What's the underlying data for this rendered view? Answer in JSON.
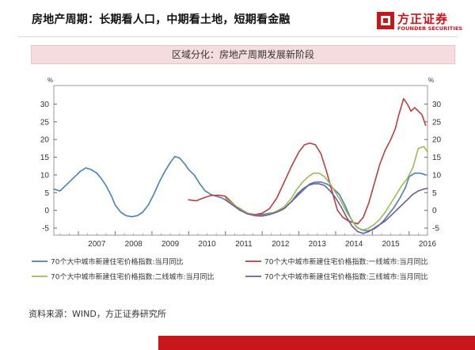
{
  "header": {
    "title": "房地产周期：长期看人口，中期看土地，短期看金融",
    "logo_cn": "方正证券",
    "logo_en": "FOUNDER SECURITIES",
    "brand_color": "#c8161d"
  },
  "banner": {
    "text": "区域分化：房地产周期发展新阶段",
    "background": "#f5dcdf"
  },
  "source": {
    "text": "资料来源：WIND，方正证券研究所"
  },
  "chart_data": {
    "type": "line",
    "title": "",
    "left_unit": "%",
    "right_unit": "%",
    "y_range": [
      -7,
      33
    ],
    "left_ticks": [
      -5,
      0,
      5,
      10,
      15,
      20,
      25,
      30
    ],
    "right_ticks": [
      -5,
      0,
      5,
      10,
      15,
      20,
      25,
      30
    ],
    "x_range": [
      2006.33,
      2016.5
    ],
    "x_labels": [
      "2007",
      "2008",
      "2009",
      "2010",
      "2011",
      "2012",
      "2013",
      "2014",
      "2015",
      "2016"
    ],
    "series": [
      {
        "name": "70个大中城市新建住宅价格指数:当月同比",
        "color": "#4a7fb5",
        "x": [
          2006.33,
          2006.5,
          2006.7,
          2006.9,
          2007.05,
          2007.2,
          2007.35,
          2007.5,
          2007.62,
          2007.75,
          2007.9,
          2008.0,
          2008.15,
          2008.3,
          2008.45,
          2008.6,
          2008.75,
          2008.9,
          2009.05,
          2009.2,
          2009.35,
          2009.5,
          2009.62,
          2009.75,
          2009.9,
          2010.0,
          2010.15,
          2010.3,
          2010.45,
          2010.6,
          2010.75,
          2010.9,
          2011.0,
          2011.2,
          2011.4,
          2011.6,
          2011.8,
          2012.0,
          2012.2,
          2012.4,
          2012.6,
          2012.8,
          2013.0,
          2013.15,
          2013.3,
          2013.45,
          2013.6,
          2013.75,
          2013.9,
          2014.1,
          2014.25,
          2014.4,
          2014.55,
          2014.7,
          2014.85,
          2015.0,
          2015.15,
          2015.3,
          2015.45,
          2015.6,
          2015.75,
          2015.9,
          2016.0,
          2016.15,
          2016.3,
          2016.45
        ],
        "y": [
          6,
          5.5,
          7.5,
          9.5,
          11,
          12,
          11.5,
          10.5,
          9,
          7,
          4,
          1.5,
          -0.5,
          -1.5,
          -1.8,
          -1.5,
          -0.5,
          1.5,
          4.5,
          8,
          11,
          13.5,
          15.2,
          14.8,
          13,
          11.5,
          10,
          7.5,
          5.5,
          4.5,
          4,
          3.5,
          3,
          1.5,
          0.5,
          -0.8,
          -1.2,
          -1.2,
          -0.8,
          -0.5,
          0.5,
          2.5,
          4.5,
          6,
          7.5,
          8,
          8,
          7.5,
          6.5,
          4.5,
          1.5,
          -2,
          -4.5,
          -5.5,
          -5.8,
          -5.5,
          -4.5,
          -3,
          -1,
          1,
          3.5,
          6.5,
          9.5,
          10.5,
          10.5,
          10
        ]
      },
      {
        "name": "70个大中城市新建住宅价格指数:一线城市:当月同比",
        "color": "#b8403d",
        "x": [
          2010.0,
          2010.2,
          2010.4,
          2010.6,
          2010.8,
          2011.0,
          2011.2,
          2011.4,
          2011.6,
          2011.8,
          2012.0,
          2012.2,
          2012.4,
          2012.6,
          2012.8,
          2013.0,
          2013.15,
          2013.3,
          2013.45,
          2013.6,
          2013.75,
          2013.9,
          2014.05,
          2014.2,
          2014.35,
          2014.5,
          2014.6,
          2014.75,
          2014.9,
          2015.05,
          2015.2,
          2015.35,
          2015.5,
          2015.62,
          2015.72,
          2015.85,
          2015.95,
          2016.05,
          2016.15,
          2016.25,
          2016.35,
          2016.45
        ],
        "y": [
          3,
          2.7,
          3.5,
          4.2,
          4.3,
          4,
          2,
          0.2,
          -0.8,
          -1.2,
          -0.8,
          0.5,
          3.5,
          8,
          12.5,
          16.5,
          18.5,
          19,
          18.5,
          16,
          11,
          5.5,
          0,
          -2,
          -3,
          -3.5,
          -3.8,
          -2,
          2,
          7.5,
          13,
          17,
          20,
          23,
          27,
          31.5,
          30,
          28,
          29,
          28,
          27,
          24
        ]
      },
      {
        "name": "70个大中城市新建住宅价格指数:二线城市:当月同比",
        "color": "#9cbb58",
        "x": [
          2011.0,
          2011.2,
          2011.4,
          2011.6,
          2011.8,
          2012.0,
          2012.2,
          2012.4,
          2012.6,
          2012.8,
          2012.95,
          2013.1,
          2013.25,
          2013.4,
          2013.55,
          2013.7,
          2013.85,
          2014.0,
          2014.15,
          2014.3,
          2014.45,
          2014.6,
          2014.75,
          2014.9,
          2015.05,
          2015.2,
          2015.35,
          2015.5,
          2015.65,
          2015.8,
          2015.95,
          2016.1,
          2016.25,
          2016.4,
          2016.5
        ],
        "y": [
          3.5,
          1.8,
          0.5,
          -0.8,
          -1.4,
          -1.5,
          -1,
          -0.2,
          1,
          3.5,
          6,
          8,
          9.5,
          10.5,
          10.5,
          9.5,
          7.5,
          5,
          2.5,
          -0.5,
          -3,
          -5,
          -5.5,
          -5,
          -4,
          -2.5,
          -0.5,
          2,
          4.5,
          7,
          9,
          12,
          17.5,
          18,
          16.5
        ]
      },
      {
        "name": "70个大中城市新建住宅价格指数:三线城市:当月同比",
        "color": "#6e5a9a",
        "x": [
          2011.0,
          2011.2,
          2011.4,
          2011.6,
          2011.8,
          2012.0,
          2012.2,
          2012.4,
          2012.6,
          2012.8,
          2012.95,
          2013.1,
          2013.25,
          2013.4,
          2013.55,
          2013.7,
          2013.85,
          2014.0,
          2014.15,
          2014.3,
          2014.45,
          2014.6,
          2014.75,
          2014.9,
          2015.05,
          2015.2,
          2015.35,
          2015.5,
          2015.65,
          2015.8,
          2015.95,
          2016.1,
          2016.25,
          2016.4,
          2016.5
        ],
        "y": [
          3,
          1.5,
          0,
          -1,
          -1.5,
          -1.6,
          -1.2,
          -0.5,
          0.5,
          2.5,
          4.5,
          6,
          7,
          7.5,
          7.5,
          7,
          5.5,
          3.5,
          1,
          -2,
          -4.5,
          -6,
          -6.5,
          -6,
          -5,
          -4,
          -3,
          -1.5,
          0,
          1.5,
          3,
          4.5,
          5.5,
          6,
          6.2
        ]
      }
    ],
    "legend_placement": "bottom"
  }
}
